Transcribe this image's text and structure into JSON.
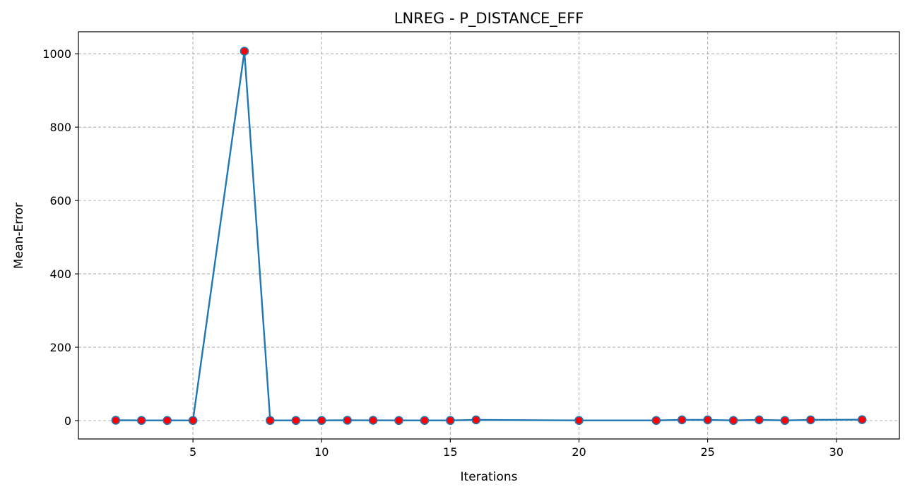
{
  "chart_data": {
    "type": "line",
    "title": "LNREG - P_DISTANCE_EFF",
    "xlabel": "Iterations",
    "ylabel": "Mean-Error",
    "xlim": [
      0.55,
      32.45
    ],
    "ylim": [
      -50,
      1060
    ],
    "xticks": [
      5,
      10,
      15,
      20,
      25,
      30
    ],
    "yticks": [
      0,
      200,
      400,
      600,
      800,
      1000
    ],
    "grid": true,
    "grid_style": "dashed",
    "line_color": "#1f77b4",
    "marker_face_color": "#ff0000",
    "marker_edge_color": "#1f77b4",
    "series": [
      {
        "x": [
          2,
          3,
          4,
          5,
          7,
          8,
          9,
          10,
          11,
          12,
          13,
          14,
          15,
          16,
          20,
          23,
          24,
          25,
          26,
          27,
          28,
          29,
          31
        ],
        "values": [
          1,
          0.5,
          0.5,
          0.5,
          1007,
          0.5,
          0.5,
          0.5,
          1,
          0.8,
          0.5,
          0.5,
          0.5,
          2,
          0.5,
          0.5,
          2,
          2,
          0.5,
          2,
          0.5,
          2,
          2.5
        ]
      }
    ]
  }
}
